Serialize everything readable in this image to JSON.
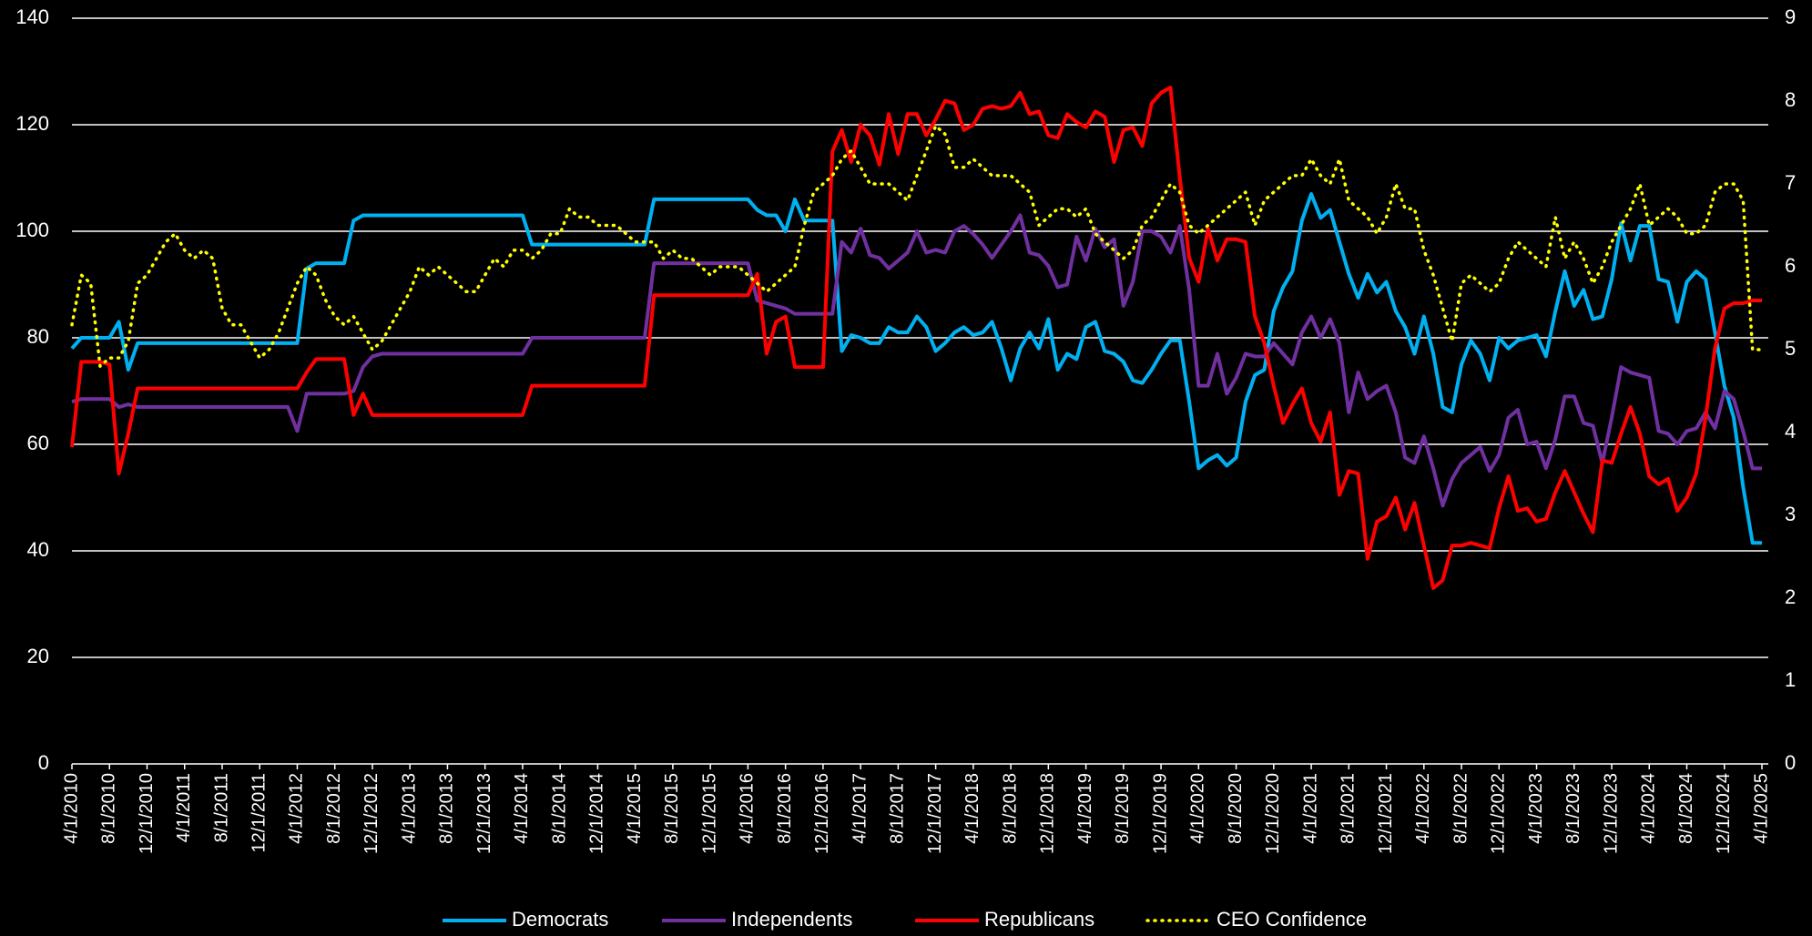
{
  "chart_data": {
    "type": "line",
    "categories": [
      "4/1/2010",
      null,
      null,
      null,
      "8/1/2010",
      null,
      null,
      null,
      "12/1/2010",
      null,
      null,
      null,
      "4/1/2011",
      null,
      null,
      null,
      "8/1/2011",
      null,
      null,
      null,
      "12/1/2011",
      null,
      null,
      null,
      "4/1/2012",
      null,
      null,
      null,
      "8/1/2012",
      null,
      null,
      null,
      "12/1/2012",
      null,
      null,
      null,
      "4/1/2013",
      null,
      null,
      null,
      "8/1/2013",
      null,
      null,
      null,
      "12/1/2013",
      null,
      null,
      null,
      "4/1/2014",
      null,
      null,
      null,
      "8/1/2014",
      null,
      null,
      null,
      "12/1/2014",
      null,
      null,
      null,
      "4/1/2015",
      null,
      null,
      null,
      "8/1/2015",
      null,
      null,
      null,
      "12/1/2015",
      null,
      null,
      null,
      "4/1/2016",
      null,
      null,
      null,
      "8/1/2016",
      null,
      null,
      null,
      "12/1/2016",
      null,
      null,
      null,
      "4/1/2017",
      null,
      null,
      null,
      "8/1/2017",
      null,
      null,
      null,
      "12/1/2017",
      null,
      null,
      null,
      "4/1/2018",
      null,
      null,
      null,
      "8/1/2018",
      null,
      null,
      null,
      "12/1/2018",
      null,
      null,
      null,
      "4/1/2019",
      null,
      null,
      null,
      "8/1/2019",
      null,
      null,
      null,
      "12/1/2019",
      null,
      null,
      null,
      "4/1/2020",
      null,
      null,
      null,
      "8/1/2020",
      null,
      null,
      null,
      "12/1/2020",
      null,
      null,
      null,
      "4/1/2021",
      null,
      null,
      null,
      "8/1/2021",
      null,
      null,
      null,
      "12/1/2021",
      null,
      null,
      null,
      "4/1/2022",
      null,
      null,
      null,
      "8/1/2022",
      null,
      null,
      null,
      "12/1/2022",
      null,
      null,
      null,
      "4/1/2023",
      null,
      null,
      null,
      "8/1/2023",
      null,
      null,
      null,
      "12/1/2023",
      null,
      null,
      null,
      "4/1/2024",
      null,
      null,
      null,
      "8/1/2024",
      null,
      null,
      null,
      "12/1/2024",
      null,
      null,
      null,
      "4/1/2025"
    ],
    "series": [
      {
        "name": "Democrats",
        "color": "#00b0f0",
        "values": [
          78,
          80,
          80,
          80,
          80,
          83,
          74,
          79,
          79,
          79,
          79,
          79,
          79,
          79,
          79,
          79,
          79,
          79,
          79,
          79,
          79,
          79,
          79,
          79,
          79,
          93,
          94,
          94,
          94,
          94,
          102,
          103,
          103,
          103,
          103,
          103,
          103,
          103,
          103,
          103,
          103,
          103,
          103,
          103,
          103,
          103,
          103,
          103,
          103,
          97.5,
          97.5,
          97.5,
          97.5,
          97.5,
          97.5,
          97.5,
          97.5,
          97.5,
          97.5,
          97.5,
          97.5,
          97.5,
          106,
          106,
          106,
          106,
          106,
          106,
          106,
          106,
          106,
          106,
          106,
          104,
          103,
          103,
          100,
          106,
          102,
          102,
          102,
          102,
          77.5,
          80.5,
          80,
          79,
          79,
          82,
          81,
          81,
          84,
          82,
          77.5,
          79,
          81,
          82,
          80.5,
          81,
          83,
          78,
          72,
          78,
          81,
          78,
          83.5,
          74,
          77,
          76,
          82,
          83,
          77.5,
          77,
          75.5,
          72,
          71.5,
          74,
          77,
          79.5,
          79.5,
          68,
          55.5,
          57,
          58,
          56,
          57.5,
          68,
          73,
          74,
          85,
          89.5,
          92.5,
          102,
          107,
          102.5,
          104,
          98,
          92,
          87.5,
          92,
          88.5,
          90.5,
          85,
          82,
          77,
          84,
          77,
          67,
          66,
          75,
          79.5,
          77,
          72,
          80,
          78,
          79.5,
          80,
          80.5,
          76.5,
          85,
          92.5,
          86,
          89,
          83.5,
          84,
          91,
          101.5,
          94.5,
          101,
          101,
          91,
          90.5,
          83,
          90.5,
          92.5,
          91,
          81,
          71,
          65,
          52,
          41.5,
          41.5
        ]
      },
      {
        "name": "Independents",
        "color": "#7030a0",
        "values": [
          68,
          68.5,
          68.5,
          68.5,
          68.5,
          67,
          67.5,
          67,
          67,
          67,
          67,
          67,
          67,
          67,
          67,
          67,
          67,
          67,
          67,
          67,
          67,
          67,
          67,
          67,
          62.5,
          69.5,
          69.5,
          69.5,
          69.5,
          69.5,
          70,
          74.5,
          76.5,
          77,
          77,
          77,
          77,
          77,
          77,
          77,
          77,
          77,
          77,
          77,
          77,
          77,
          77,
          77,
          77,
          80,
          80,
          80,
          80,
          80,
          80,
          80,
          80,
          80,
          80,
          80,
          80,
          80,
          94,
          94,
          94,
          94,
          94,
          94,
          94,
          94,
          94,
          94,
          94,
          87,
          86.5,
          86,
          85.5,
          84.5,
          84.5,
          84.5,
          84.5,
          84.5,
          98,
          96,
          100.5,
          95.5,
          95,
          93,
          94.5,
          96,
          100,
          96,
          96.5,
          96,
          100,
          101,
          99.5,
          97.5,
          95,
          97.5,
          100,
          103,
          96,
          95.5,
          93.5,
          89.5,
          90,
          99,
          94.5,
          100.5,
          97,
          98.5,
          86,
          90.5,
          100,
          100,
          99,
          96,
          101,
          89,
          71,
          71,
          77,
          69.5,
          72.5,
          77,
          76.5,
          76.5,
          79,
          77,
          75,
          81,
          84,
          80,
          83.5,
          79,
          66,
          73.5,
          68.5,
          70,
          71,
          66,
          57.5,
          56.5,
          61.5,
          55.5,
          48.5,
          53.5,
          56.5,
          58,
          59.5,
          55,
          58,
          65,
          66.5,
          60,
          60.5,
          55.5,
          61,
          69,
          69,
          64,
          63.5,
          56.5,
          65,
          74.5,
          73.5,
          73,
          72.5,
          62.5,
          62,
          60,
          62.5,
          63,
          66,
          63,
          70,
          68.5,
          62.5,
          55.5,
          55.5
        ]
      },
      {
        "name": "Republicans",
        "color": "#ff0000",
        "values": [
          59.5,
          75.5,
          75.5,
          75.5,
          75,
          54.5,
          62,
          70.5,
          70.5,
          70.5,
          70.5,
          70.5,
          70.5,
          70.5,
          70.5,
          70.5,
          70.5,
          70.5,
          70.5,
          70.5,
          70.5,
          70.5,
          70.5,
          70.5,
          70.5,
          73.5,
          76,
          76,
          76,
          76,
          65.5,
          69.5,
          65.5,
          65.5,
          65.5,
          65.5,
          65.5,
          65.5,
          65.5,
          65.5,
          65.5,
          65.5,
          65.5,
          65.5,
          65.5,
          65.5,
          65.5,
          65.5,
          65.5,
          71,
          71,
          71,
          71,
          71,
          71,
          71,
          71,
          71,
          71,
          71,
          71,
          71,
          88,
          88,
          88,
          88,
          88,
          88,
          88,
          88,
          88,
          88,
          88,
          92,
          77,
          83,
          84,
          74.5,
          74.5,
          74.5,
          74.5,
          115,
          119,
          113,
          120,
          118,
          112.5,
          122,
          114.5,
          122,
          122,
          118,
          121,
          124.5,
          124,
          119,
          120,
          123,
          123.5,
          123,
          123.5,
          126,
          122,
          122.5,
          118,
          117.5,
          122,
          120.5,
          119.5,
          122.5,
          121.5,
          113,
          119,
          119.5,
          116,
          124,
          126,
          127,
          110,
          95,
          90.5,
          100.5,
          94.5,
          98.5,
          98.5,
          98,
          84,
          79,
          71,
          64,
          67.5,
          70.5,
          64,
          60.5,
          66,
          50.5,
          55,
          54.5,
          38.5,
          45.5,
          46.5,
          50,
          44,
          49,
          41,
          33,
          34.5,
          41,
          41,
          41.5,
          41,
          40.5,
          48,
          54,
          47.5,
          48,
          45.5,
          46,
          51,
          55,
          51,
          47,
          43.5,
          57,
          56.5,
          62,
          67,
          62,
          54,
          52.5,
          53.5,
          47.5,
          50,
          54.5,
          65,
          78,
          85.5,
          86.5,
          86.5,
          87,
          87
        ]
      },
      {
        "name": "CEO Confidence",
        "color": "#ffff00",
        "line_style": "dotted",
        "axis": "y2",
        "values": [
          5.3,
          5.9,
          5.8,
          4.8,
          4.9,
          4.9,
          5.1,
          5.8,
          5.9,
          6.1,
          6.3,
          6.4,
          6.2,
          6.1,
          6.2,
          6.1,
          5.5,
          5.3,
          5.3,
          5.1,
          4.9,
          5,
          5.2,
          5.5,
          5.8,
          6,
          5.9,
          5.6,
          5.4,
          5.3,
          5.4,
          5.2,
          5,
          5.1,
          5.3,
          5.5,
          5.7,
          6,
          5.9,
          6,
          5.9,
          5.8,
          5.7,
          5.7,
          5.9,
          6.1,
          6,
          6.2,
          6.2,
          6.1,
          6.2,
          6.4,
          6.4,
          6.7,
          6.6,
          6.6,
          6.5,
          6.5,
          6.5,
          6.4,
          6.3,
          6.3,
          6.3,
          6.1,
          6.2,
          6.1,
          6.1,
          6,
          5.9,
          6,
          6,
          6,
          5.9,
          5.8,
          5.7,
          5.8,
          5.9,
          6,
          6.5,
          6.9,
          7,
          7.1,
          7.3,
          7.4,
          7.2,
          7,
          7,
          7,
          6.9,
          6.8,
          7.1,
          7.4,
          7.7,
          7.6,
          7.2,
          7.2,
          7.3,
          7.2,
          7.1,
          7.1,
          7.1,
          7,
          6.9,
          6.5,
          6.6,
          6.7,
          6.7,
          6.6,
          6.7,
          6.4,
          6.3,
          6.2,
          6.1,
          6.2,
          6.5,
          6.6,
          6.8,
          7,
          6.9,
          6.5,
          6.4,
          6.5,
          6.6,
          6.7,
          6.8,
          6.9,
          6.5,
          6.8,
          6.9,
          7,
          7.1,
          7.1,
          7.3,
          7.1,
          7,
          7.3,
          6.8,
          6.7,
          6.6,
          6.4,
          6.6,
          7,
          6.7,
          6.7,
          6.2,
          5.9,
          5.5,
          5.1,
          5.8,
          5.9,
          5.8,
          5.7,
          5.8,
          6.1,
          6.3,
          6.2,
          6.1,
          6,
          6.6,
          6.1,
          6.3,
          6.1,
          5.8,
          6,
          6.3,
          6.5,
          6.7,
          7,
          6.5,
          6.6,
          6.7,
          6.6,
          6.4,
          6.4,
          6.5,
          6.9,
          7,
          7,
          6.8,
          5,
          5
        ]
      }
    ],
    "ylim": [
      0,
      140
    ],
    "yticks": [
      0,
      20,
      40,
      60,
      80,
      100,
      120,
      140
    ],
    "y2lim": [
      0,
      9
    ],
    "y2ticks": [
      0,
      1,
      2,
      3,
      4,
      5,
      6,
      7,
      8,
      9
    ],
    "grid": true,
    "legend": "bottom"
  }
}
